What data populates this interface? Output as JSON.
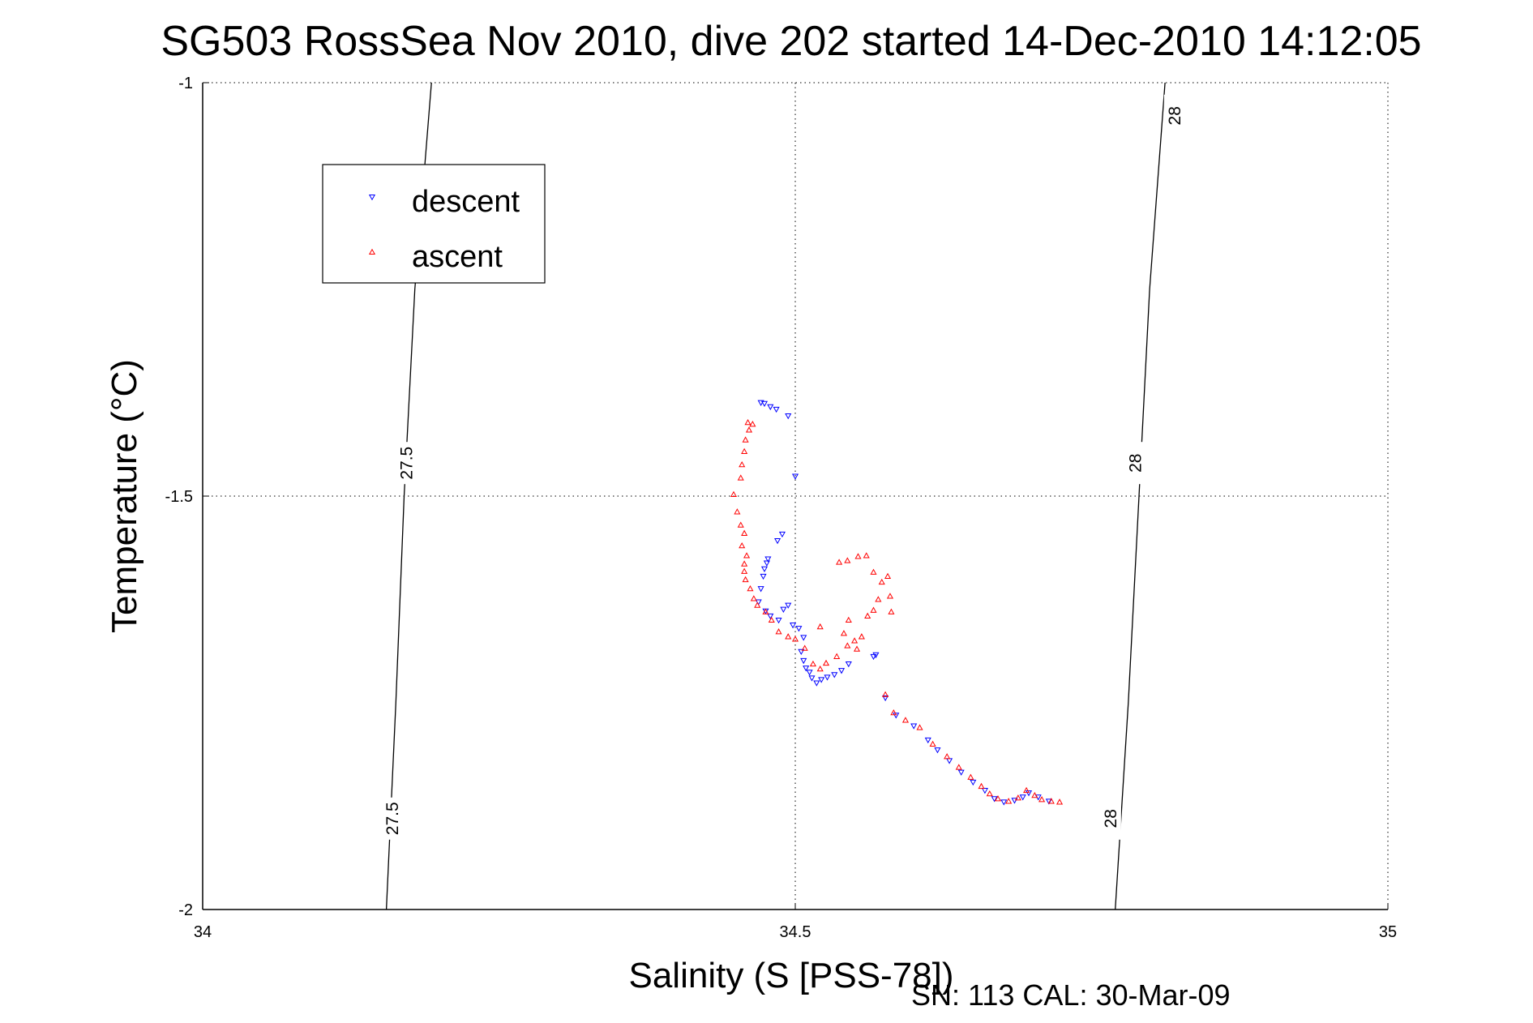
{
  "chart_data": {
    "type": "scatter",
    "title": "SG503 RossSea Nov 2010, dive 202 started 14-Dec-2010 14:12:05",
    "xlabel": "Salinity (S [PSS-78])",
    "ylabel": "Temperature (°C)",
    "xlim": [
      34,
      35
    ],
    "ylim": [
      -2,
      -1
    ],
    "xticks": [
      34,
      34.5,
      35
    ],
    "yticks": [
      -2,
      -1.5,
      -1
    ],
    "xtick_labels": [
      "34",
      "34.5",
      "35"
    ],
    "ytick_labels": [
      "-2",
      "-1.5",
      "-1"
    ],
    "grid": true,
    "legend_position": "top-left",
    "footer": "SN: 113  CAL: 30-Mar-09",
    "contours": [
      {
        "label": "27.5",
        "points": [
          [
            34.193,
            -1.0
          ],
          [
            34.179,
            -1.25
          ],
          [
            34.17,
            -1.5
          ],
          [
            34.163,
            -1.75
          ],
          [
            34.155,
            -2.0
          ]
        ],
        "label_positions": [
          [
            34.172,
            -1.46
          ],
          [
            34.16,
            -1.89
          ]
        ]
      },
      {
        "label": "28",
        "points": [
          [
            34.812,
            -1.0
          ],
          [
            34.799,
            -1.25
          ],
          [
            34.79,
            -1.5
          ],
          [
            34.781,
            -1.75
          ],
          [
            34.77,
            -2.0
          ]
        ],
        "label_positions": [
          [
            34.82,
            -1.04
          ],
          [
            34.787,
            -1.46
          ],
          [
            34.766,
            -1.89
          ]
        ]
      }
    ],
    "series": [
      {
        "name": "descent",
        "color": "#0000ff",
        "marker": "triangle-down",
        "points": [
          [
            34.471,
            -1.387
          ],
          [
            34.474,
            -1.388
          ],
          [
            34.479,
            -1.392
          ],
          [
            34.484,
            -1.395
          ],
          [
            34.494,
            -1.403
          ],
          [
            34.5,
            -1.476
          ],
          [
            34.489,
            -1.546
          ],
          [
            34.485,
            -1.554
          ],
          [
            34.477,
            -1.576
          ],
          [
            34.476,
            -1.581
          ],
          [
            34.474,
            -1.588
          ],
          [
            34.473,
            -1.597
          ],
          [
            34.471,
            -1.612
          ],
          [
            34.469,
            -1.628
          ],
          [
            34.475,
            -1.639
          ],
          [
            34.479,
            -1.645
          ],
          [
            34.486,
            -1.65
          ],
          [
            34.49,
            -1.637
          ],
          [
            34.494,
            -1.632
          ],
          [
            34.498,
            -1.656
          ],
          [
            34.503,
            -1.66
          ],
          [
            34.507,
            -1.671
          ],
          [
            34.505,
            -1.688
          ],
          [
            34.507,
            -1.699
          ],
          [
            34.509,
            -1.708
          ],
          [
            34.512,
            -1.713
          ],
          [
            34.514,
            -1.72
          ],
          [
            34.518,
            -1.726
          ],
          [
            34.522,
            -1.722
          ],
          [
            34.527,
            -1.719
          ],
          [
            34.533,
            -1.716
          ],
          [
            34.539,
            -1.711
          ],
          [
            34.545,
            -1.703
          ],
          [
            34.566,
            -1.694
          ],
          [
            34.568,
            -1.692
          ],
          [
            34.576,
            -1.744
          ],
          [
            34.585,
            -1.765
          ],
          [
            34.6,
            -1.778
          ],
          [
            34.612,
            -1.795
          ],
          [
            34.62,
            -1.807
          ],
          [
            34.63,
            -1.82
          ],
          [
            34.64,
            -1.834
          ],
          [
            34.65,
            -1.846
          ],
          [
            34.66,
            -1.856
          ],
          [
            34.668,
            -1.866
          ],
          [
            34.676,
            -1.87
          ],
          [
            34.685,
            -1.868
          ],
          [
            34.692,
            -1.864
          ],
          [
            34.697,
            -1.859
          ],
          [
            34.705,
            -1.864
          ],
          [
            34.714,
            -1.869
          ]
        ]
      },
      {
        "name": "ascent",
        "color": "#ff0000",
        "marker": "triangle-up",
        "points": [
          [
            34.46,
            -1.411
          ],
          [
            34.464,
            -1.413
          ],
          [
            34.461,
            -1.42
          ],
          [
            34.458,
            -1.432
          ],
          [
            34.457,
            -1.446
          ],
          [
            34.455,
            -1.462
          ],
          [
            34.454,
            -1.478
          ],
          [
            34.448,
            -1.498
          ],
          [
            34.451,
            -1.519
          ],
          [
            34.454,
            -1.535
          ],
          [
            34.457,
            -1.545
          ],
          [
            34.455,
            -1.56
          ],
          [
            34.459,
            -1.572
          ],
          [
            34.457,
            -1.582
          ],
          [
            34.457,
            -1.591
          ],
          [
            34.458,
            -1.601
          ],
          [
            34.462,
            -1.612
          ],
          [
            34.465,
            -1.624
          ],
          [
            34.468,
            -1.632
          ],
          [
            34.475,
            -1.64
          ],
          [
            34.48,
            -1.65
          ],
          [
            34.486,
            -1.664
          ],
          [
            34.494,
            -1.67
          ],
          [
            34.5,
            -1.673
          ],
          [
            34.508,
            -1.684
          ],
          [
            34.515,
            -1.703
          ],
          [
            34.521,
            -1.709
          ],
          [
            34.526,
            -1.702
          ],
          [
            34.535,
            -1.694
          ],
          [
            34.544,
            -1.681
          ],
          [
            34.55,
            -1.675
          ],
          [
            34.556,
            -1.67
          ],
          [
            34.561,
            -1.645
          ],
          [
            34.566,
            -1.638
          ],
          [
            34.57,
            -1.625
          ],
          [
            34.573,
            -1.604
          ],
          [
            34.578,
            -1.597
          ],
          [
            34.58,
            -1.621
          ],
          [
            34.581,
            -1.64
          ],
          [
            34.566,
            -1.592
          ],
          [
            34.56,
            -1.572
          ],
          [
            34.553,
            -1.573
          ],
          [
            34.544,
            -1.578
          ],
          [
            34.537,
            -1.58
          ],
          [
            34.521,
            -1.658
          ],
          [
            34.545,
            -1.65
          ],
          [
            34.541,
            -1.666
          ],
          [
            34.552,
            -1.685
          ],
          [
            34.576,
            -1.74
          ],
          [
            34.583,
            -1.762
          ],
          [
            34.593,
            -1.771
          ],
          [
            34.605,
            -1.78
          ],
          [
            34.616,
            -1.8
          ],
          [
            34.628,
            -1.815
          ],
          [
            34.638,
            -1.828
          ],
          [
            34.648,
            -1.84
          ],
          [
            34.657,
            -1.851
          ],
          [
            34.664,
            -1.86
          ],
          [
            34.671,
            -1.866
          ],
          [
            34.68,
            -1.869
          ],
          [
            34.688,
            -1.865
          ],
          [
            34.695,
            -1.856
          ],
          [
            34.702,
            -1.862
          ],
          [
            34.708,
            -1.867
          ],
          [
            34.716,
            -1.869
          ],
          [
            34.723,
            -1.87
          ]
        ]
      }
    ]
  }
}
